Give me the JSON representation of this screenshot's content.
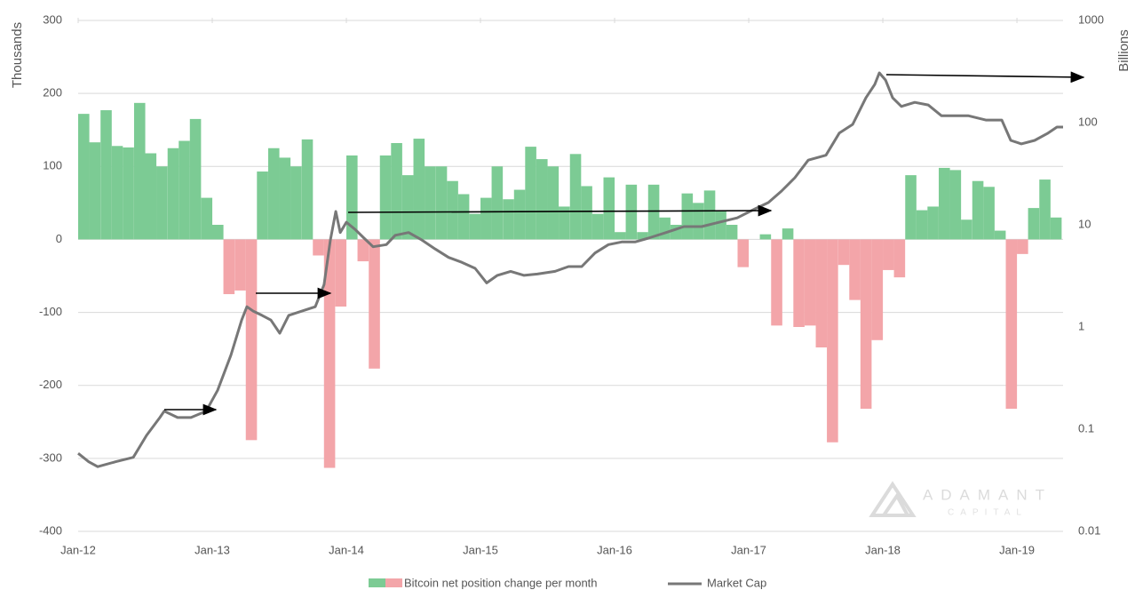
{
  "chart_data": {
    "type": "bar",
    "ylabel": "Thousands",
    "y2label": "Billions",
    "watermark": "ADAMANT",
    "watermark_sub": "CAPITAL",
    "xlim": [
      2012,
      2019.344
    ],
    "xticks": [
      {
        "value": 2012,
        "label": "Jan-12"
      },
      {
        "value": 2013,
        "label": "Jan-13"
      },
      {
        "value": 2014,
        "label": "Jan-14"
      },
      {
        "value": 2015,
        "label": "Jan-15"
      },
      {
        "value": 2016,
        "label": "Jan-16"
      },
      {
        "value": 2017,
        "label": "Jan-17"
      },
      {
        "value": 2018,
        "label": "Jan-18"
      },
      {
        "value": 2019,
        "label": "Jan-19"
      }
    ],
    "ylim": [
      -400,
      300
    ],
    "yticks": [
      -400,
      -300,
      -200,
      -100,
      0,
      100,
      200,
      300
    ],
    "y2lim": [
      0.01,
      1000
    ],
    "y2scale": "log",
    "y2ticks": [
      0.01,
      0.1,
      1,
      10,
      100,
      1000
    ],
    "grid": true,
    "legend": "bottom",
    "series": [
      {
        "name": "Bitcoin net position change per month",
        "type": "bar",
        "color": "#7ccb94",
        "negative_color": "#f3a5a9",
        "x": [
          2012,
          2012.083,
          2012.167,
          2012.25,
          2012.333,
          2012.417,
          2012.5,
          2012.583,
          2012.667,
          2012.75,
          2012.833,
          2012.917,
          2013,
          2013.083,
          2013.167,
          2013.25,
          2013.333,
          2013.417,
          2013.5,
          2013.583,
          2013.667,
          2013.75,
          2013.833,
          2013.917,
          2014,
          2014.083,
          2014.167,
          2014.25,
          2014.333,
          2014.417,
          2014.5,
          2014.583,
          2014.667,
          2014.75,
          2014.833,
          2014.917,
          2015,
          2015.083,
          2015.167,
          2015.25,
          2015.333,
          2015.417,
          2015.5,
          2015.583,
          2015.667,
          2015.75,
          2015.833,
          2015.917,
          2016,
          2016.083,
          2016.167,
          2016.25,
          2016.333,
          2016.417,
          2016.5,
          2016.583,
          2016.667,
          2016.75,
          2016.833,
          2016.917,
          2017,
          2017.083,
          2017.167,
          2017.25,
          2017.333,
          2017.417,
          2017.5,
          2017.583,
          2017.667,
          2017.75,
          2017.833,
          2017.917,
          2018,
          2018.083,
          2018.167,
          2018.25,
          2018.333,
          2018.417,
          2018.5,
          2018.583,
          2018.667,
          2018.75,
          2018.833,
          2018.917,
          2019,
          2019.083,
          2019.167,
          2019.25
        ],
        "values": [
          172,
          133,
          177,
          128,
          126,
          187,
          118,
          100,
          125,
          135,
          165,
          57,
          20,
          -75,
          -70,
          -275,
          93,
          125,
          112,
          100,
          137,
          -22,
          -313,
          -92,
          115,
          -30,
          -177,
          115,
          132,
          88,
          138,
          100,
          100,
          80,
          62,
          35,
          57,
          100,
          55,
          68,
          127,
          110,
          100,
          45,
          117,
          73,
          35,
          85,
          10,
          75,
          10,
          75,
          30,
          20,
          63,
          50,
          67,
          40,
          20,
          -38,
          0,
          7,
          -118,
          15,
          -120,
          -118,
          -148,
          -278,
          -35,
          -83,
          -232,
          -138,
          -42,
          -52,
          88,
          40,
          45,
          98,
          95,
          27,
          80,
          72,
          12,
          -232,
          -20,
          43,
          82,
          30
        ]
      },
      {
        "name": "Market Cap",
        "type": "line",
        "axis": "y2",
        "color": "#777777",
        "x": [
          2012,
          2012.079,
          2012.146,
          2012.278,
          2012.411,
          2012.51,
          2012.609,
          2012.642,
          2012.742,
          2012.841,
          2012.954,
          2013.04,
          2013.139,
          2013.219,
          2013.258,
          2013.305,
          2013.371,
          2013.437,
          2013.503,
          2013.57,
          2013.669,
          2013.768,
          2013.834,
          2013.881,
          2013.921,
          2013.954,
          2014,
          2014.066,
          2014.132,
          2014.199,
          2014.298,
          2014.364,
          2014.464,
          2014.563,
          2014.662,
          2014.762,
          2014.861,
          2014.96,
          2015.046,
          2015.126,
          2015.225,
          2015.325,
          2015.424,
          2015.556,
          2015.656,
          2015.755,
          2015.854,
          2015.954,
          2016.053,
          2016.152,
          2016.252,
          2016.384,
          2016.517,
          2016.649,
          2016.781,
          2016.914,
          2017.046,
          2017.146,
          2017.245,
          2017.344,
          2017.444,
          2017.576,
          2017.675,
          2017.775,
          2017.874,
          2017.94,
          2017.974,
          2018.02,
          2018.073,
          2018.139,
          2018.238,
          2018.338,
          2018.437,
          2018.536,
          2018.636,
          2018.768,
          2018.887,
          2018.954,
          2019.033,
          2019.132,
          2019.232,
          2019.298,
          2019.344
        ],
        "values": [
          0.058,
          0.048,
          0.043,
          0.048,
          0.053,
          0.087,
          0.13,
          0.15,
          0.13,
          0.13,
          0.15,
          0.24,
          0.53,
          1.17,
          1.58,
          1.43,
          1.3,
          1.17,
          0.87,
          1.3,
          1.43,
          1.58,
          2.6,
          7.1,
          13.5,
          8.4,
          10.6,
          9.0,
          7.4,
          6.1,
          6.4,
          7.9,
          8.4,
          7.1,
          5.8,
          4.8,
          4.3,
          3.75,
          2.7,
          3.2,
          3.5,
          3.2,
          3.3,
          3.5,
          3.9,
          3.9,
          5.3,
          6.4,
          6.8,
          6.8,
          7.4,
          8.4,
          9.6,
          9.6,
          10.6,
          11.7,
          14.3,
          16.5,
          21.4,
          28.9,
          43,
          48,
          79,
          96,
          175,
          237,
          307,
          261,
          175,
          144,
          158,
          149,
          117,
          117,
          117,
          106,
          106,
          67,
          62,
          67,
          79,
          90.5,
          90.5
        ]
      }
    ]
  }
}
